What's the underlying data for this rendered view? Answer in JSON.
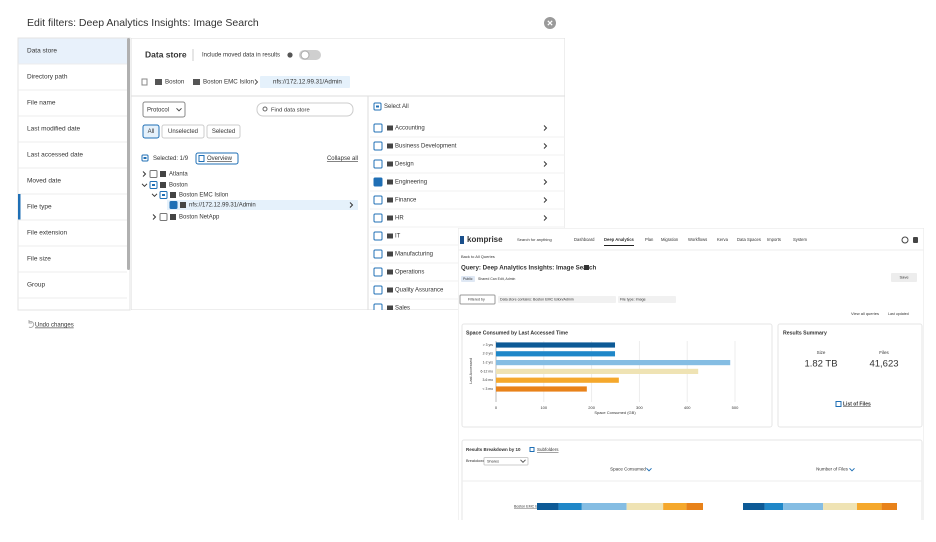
{
  "modal": {
    "title": "Edit filters: Deep Analytics Insights: Image Search",
    "sidebar": [
      "Data store",
      "Directory path",
      "File name",
      "Last modified date",
      "Last accessed date",
      "Moved date",
      "File type",
      "File extension",
      "File size",
      "Group"
    ],
    "heading": "Data store",
    "toggle_label": "Include moved data in results",
    "breadcrumb": [
      "Boston",
      "Boston EMC Isilon",
      "nfs://172.12.99.31/Admin"
    ],
    "protocol": "Protocol",
    "search_placeholder": "Find data store",
    "tabs": [
      "All",
      "Unselected",
      "Selected"
    ],
    "selected_count": "Selected: 1/9",
    "overview": "Overview",
    "collapse_all": "Collapse all",
    "tree": [
      "Atlanta",
      "Boston",
      "Boston EMC Isilon",
      "nfs://172.12.99.31/Admin",
      "Boston NetApp"
    ],
    "select_all": "Select All",
    "folders": [
      "Accounting",
      "Business Development",
      "Design",
      "Engineering",
      "Finance",
      "HR",
      "IT",
      "Manufacturing",
      "Operations",
      "Quality Assurance",
      "Sales"
    ],
    "undo": "Undo changes"
  },
  "app": {
    "logo": "komprise",
    "search_placeholder": "Search for anything",
    "nav": [
      "Dashboard",
      "Deep Analytics",
      "Plan",
      "Migration",
      "Workflows",
      "Kerva",
      "Data Spaces",
      "Imports",
      "System"
    ],
    "back": "Back to All Queries",
    "query_title": "Query: Deep Analytics Insights: Image Search",
    "visibility": "Public",
    "sharing": "Shared Can Edit, Admin",
    "save": "Save",
    "filters_label": "Filtered by",
    "filters": [
      "Data store contains: Boston EMC Isilon/Admin",
      "File type: Image"
    ],
    "view_all": "View all queries",
    "last_updated": "Last updated",
    "summary": {
      "title": "Results Summary",
      "size_label": "Size",
      "size": "1.82 TB",
      "files_label": "Files",
      "files": "41,623",
      "link": "List of Files"
    },
    "breakdown": {
      "title": "Results Breakdown by 10",
      "link": "Subfolders",
      "by_label": "Breakdown by",
      "by_value": "Shares",
      "columns": [
        "Space Consumed",
        "Number of Files"
      ],
      "row": "Boston EMC Isilon/Admin",
      "colors": [
        "#0d5a96",
        "#1f87c8",
        "#85bde3",
        "#efe3b4",
        "#f5a82c",
        "#e8821a"
      ],
      "space": [
        13,
        14,
        27,
        22,
        14,
        10
      ],
      "files": [
        14,
        12,
        26,
        22,
        16,
        10
      ]
    }
  },
  "chart_data": {
    "type": "bar",
    "orientation": "horizontal",
    "title": "Space Consumed by Last Accessed Time",
    "x_label": "Space Consumed (GB)",
    "y_label": "Last Accessed",
    "categories": [
      "> 3 yrs",
      "2-3 yrs",
      "1-2 yrs",
      "6-12 mo",
      "3-6 mo",
      "< 3 mo"
    ],
    "values": [
      249,
      249,
      490,
      423,
      257,
      190
    ],
    "colors": [
      "#0d5a96",
      "#1f87c8",
      "#85bde3",
      "#efe3b4",
      "#f5a82c",
      "#e8821a"
    ],
    "xlim": [
      0,
      500
    ],
    "xticks": [
      0,
      100,
      200,
      300,
      400,
      500
    ],
    "grid": true
  }
}
